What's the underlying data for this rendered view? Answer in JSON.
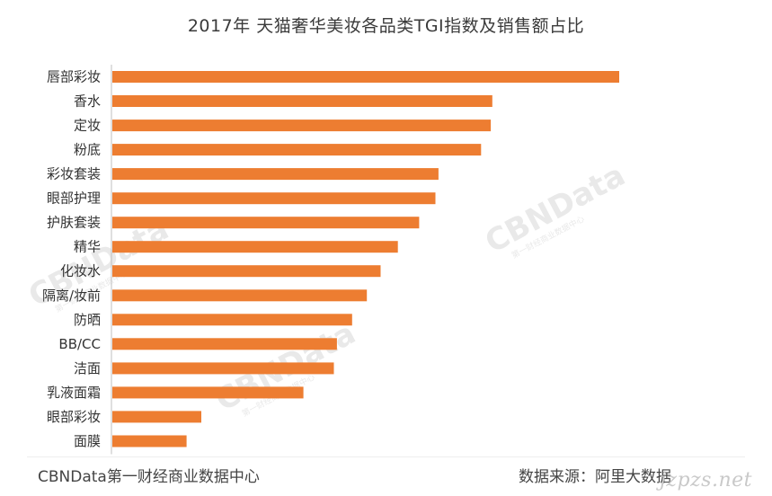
{
  "chart_data": {
    "type": "bar",
    "orientation": "horizontal",
    "title": "2017年 天猫奢华美妆各品类TGI指数及销售额占比",
    "categories": [
      "唇部彩妆",
      "香水",
      "定妆",
      "粉底",
      "彩妆套装",
      "眼部护理",
      "护肤套装",
      "精华",
      "化妆水",
      "隔离/妆前",
      "防晒",
      "BB/CC",
      "洁面",
      "乳液面霜",
      "眼部彩妆",
      "面膜"
    ],
    "values": [
      100,
      75,
      74.7,
      72.8,
      64.4,
      63.8,
      60.6,
      56.4,
      53,
      50.3,
      47.4,
      44.4,
      43.8,
      37.8,
      17.7,
      14.8
    ],
    "xlim": [
      0,
      100
    ],
    "xlabel": "",
    "ylabel": "",
    "grid": false,
    "bar_color": "#ed7d31",
    "axis_color": "#bfbfbf"
  },
  "watermark": {
    "brand": "CBNData",
    "tagline": "第一财经商业数据中心"
  },
  "footer": {
    "left": "CBNData第一财经商业数据中心",
    "right": "数据来源：阿里大数据",
    "site": "jzpzs.net"
  }
}
